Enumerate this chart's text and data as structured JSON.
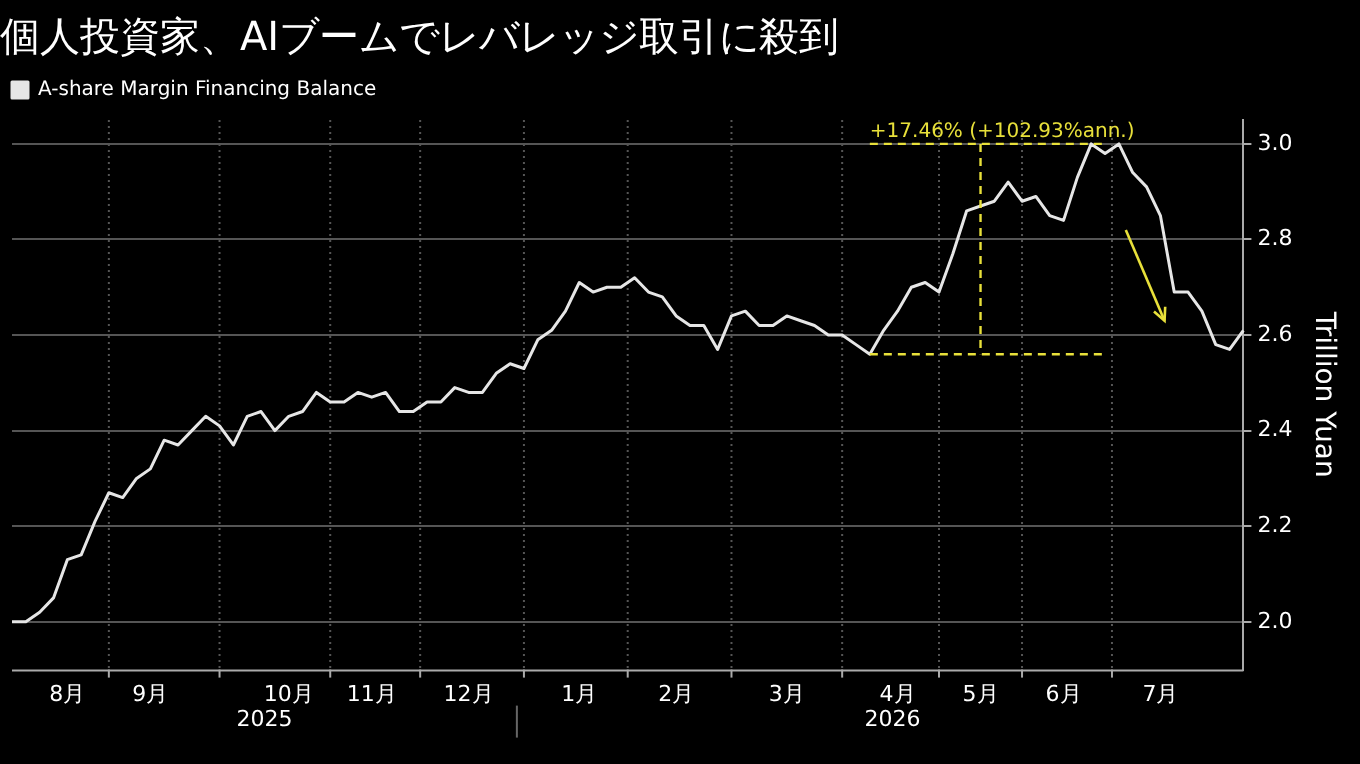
{
  "chart_data": {
    "type": "line",
    "title": "個人投資家、AIブームでレバレッジ取引に殺到",
    "ylabel": "Trillion Yuan",
    "categories": [
      null,
      null,
      null,
      null,
      "8月",
      null,
      null,
      null,
      null,
      null,
      "9月",
      null,
      null,
      null,
      null,
      null,
      null,
      null,
      null,
      null,
      "10月",
      null,
      null,
      null,
      null,
      null,
      "11月",
      null,
      null,
      null,
      null,
      null,
      null,
      "12月",
      null,
      null,
      null,
      null,
      null,
      null,
      null,
      "1月",
      null,
      null,
      null,
      null,
      null,
      null,
      "2月",
      null,
      null,
      null,
      null,
      null,
      null,
      null,
      "3月",
      null,
      null,
      null,
      null,
      null,
      null,
      null,
      "4月",
      null,
      null,
      null,
      null,
      null,
      "5月",
      null,
      null,
      null,
      null,
      null,
      "6月",
      null,
      null,
      null,
      null,
      null,
      null,
      "7月",
      null,
      null,
      null,
      null,
      null,
      null
    ],
    "series": [
      {
        "name": "A-share Margin Financing Balance",
        "color": "#e6e6e6",
        "values": [
          2.0,
          2.0,
          2.02,
          2.05,
          2.13,
          2.14,
          2.21,
          2.27,
          2.26,
          2.3,
          2.32,
          2.38,
          2.37,
          2.4,
          2.43,
          2.41,
          2.37,
          2.43,
          2.44,
          2.4,
          2.43,
          2.44,
          2.48,
          2.46,
          2.46,
          2.48,
          2.47,
          2.48,
          2.44,
          2.44,
          2.46,
          2.46,
          2.49,
          2.48,
          2.48,
          2.52,
          2.54,
          2.53,
          2.59,
          2.61,
          2.65,
          2.71,
          2.69,
          2.7,
          2.7,
          2.72,
          2.69,
          2.68,
          2.64,
          2.62,
          2.62,
          2.57,
          2.64,
          2.65,
          2.62,
          2.62,
          2.64,
          2.63,
          2.62,
          2.6,
          2.6,
          2.58,
          2.56,
          2.61,
          2.65,
          2.7,
          2.71,
          2.69,
          2.77,
          2.86,
          2.87,
          2.88,
          2.92,
          2.88,
          2.89,
          2.85,
          2.84,
          2.93,
          3.0,
          2.98,
          3.0,
          2.94,
          2.91,
          2.85,
          2.69,
          2.69,
          2.65,
          2.58,
          2.57,
          2.61
        ]
      }
    ],
    "ylim": [
      1.9,
      3.05
    ],
    "yticks": [
      {
        "value": 2,
        "label": "2.0"
      },
      {
        "value": 2.2,
        "label": "2.2"
      },
      {
        "value": 2.4,
        "label": "2.4"
      },
      {
        "value": 2.6,
        "label": "2.6"
      },
      {
        "value": 2.8,
        "label": "2.8"
      },
      {
        "value": 3,
        "label": "3.0"
      }
    ],
    "grid": true,
    "legend": "top left",
    "annotations": [
      "2025",
      "2026",
      "+17.46% (+102.93%ann.)"
    ]
  }
}
